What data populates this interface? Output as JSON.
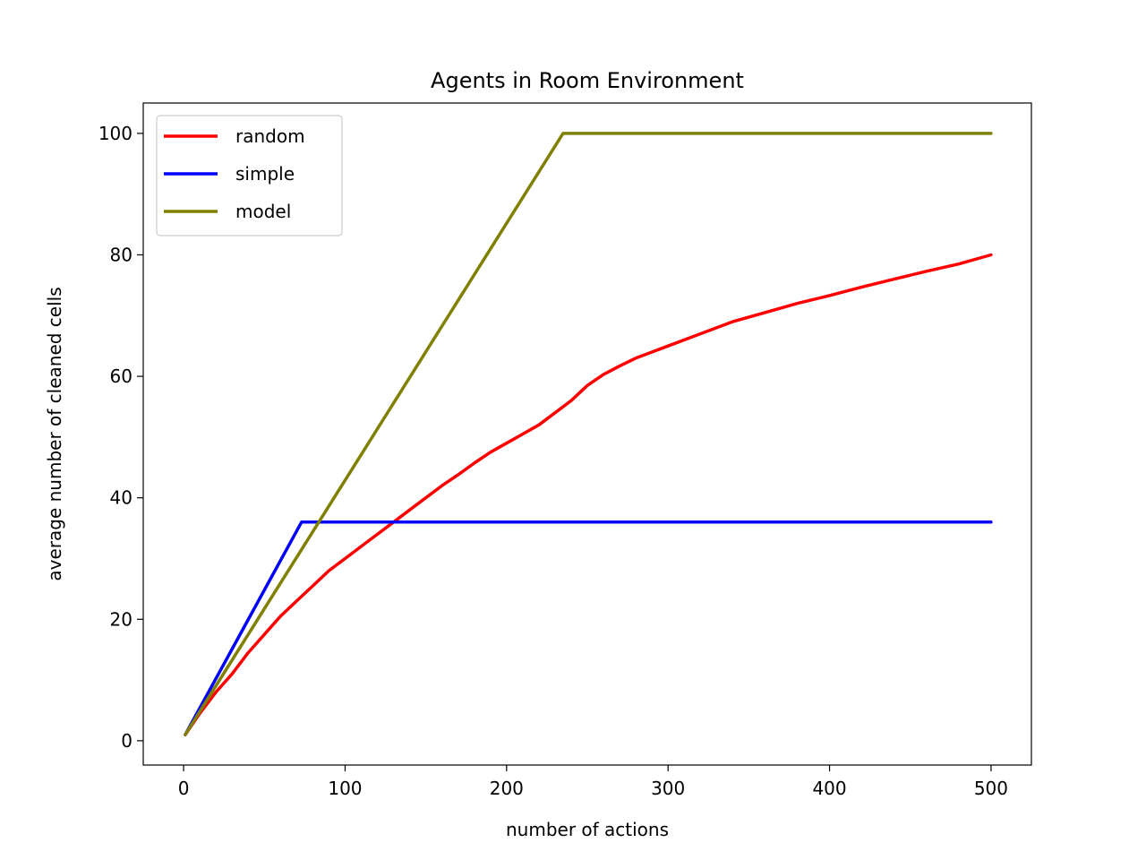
{
  "chart_data": {
    "type": "line",
    "title": "Agents in Room Environment",
    "xlabel": "number of actions",
    "ylabel": "average number of cleaned cells",
    "xlim": [
      -25,
      525
    ],
    "ylim": [
      -4,
      105
    ],
    "xticks": [
      0,
      100,
      200,
      300,
      400,
      500
    ],
    "yticks": [
      0,
      20,
      40,
      60,
      80,
      100
    ],
    "grid": false,
    "legend_position": "top-left",
    "series": [
      {
        "name": "random",
        "color": "#ff0000",
        "x": [
          1,
          10,
          20,
          30,
          40,
          50,
          60,
          70,
          80,
          90,
          100,
          110,
          120,
          130,
          140,
          150,
          160,
          170,
          180,
          190,
          200,
          210,
          220,
          230,
          240,
          250,
          260,
          270,
          280,
          290,
          300,
          320,
          340,
          360,
          380,
          400,
          420,
          440,
          460,
          480,
          500
        ],
        "y": [
          1,
          4.5,
          8,
          11,
          14.5,
          17.5,
          20.5,
          23,
          25.5,
          28,
          30,
          32,
          34,
          36,
          38,
          40,
          42,
          43.8,
          45.7,
          47.5,
          49,
          50.5,
          52,
          54,
          56,
          58.5,
          60.3,
          61.7,
          63,
          64,
          65,
          67,
          69,
          70.5,
          72,
          73.3,
          74.7,
          76,
          77.3,
          78.5,
          80
        ]
      },
      {
        "name": "simple",
        "color": "#0000ff",
        "x": [
          1,
          73,
          500
        ],
        "y": [
          1,
          36,
          36
        ]
      },
      {
        "name": "model",
        "color": "#808000",
        "x": [
          1,
          235,
          500
        ],
        "y": [
          1,
          100,
          100
        ]
      }
    ]
  }
}
